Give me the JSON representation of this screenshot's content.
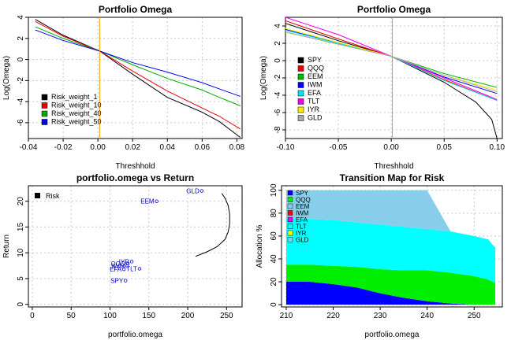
{
  "chart_data": [
    {
      "id": "p1",
      "type": "line",
      "title": "Portfolio Omega",
      "xlabel": "Threshhold",
      "ylabel": "Log(Omega)",
      "xlim": [
        -0.04,
        0.083
      ],
      "ylim": [
        -7.5,
        4
      ],
      "xticks": [
        "-0.04",
        "-0.02",
        "0.00",
        "0.02",
        "0.04",
        "0.06",
        "0.08"
      ],
      "xtick_values": [
        -0.04,
        -0.02,
        0,
        0.02,
        0.04,
        0.06,
        0.08
      ],
      "yticks": [
        "4",
        "2",
        "0",
        "-2",
        "-4",
        "-6"
      ],
      "ytick_values": [
        4,
        2,
        0,
        -2,
        -4,
        -6
      ],
      "grid": true,
      "vline": {
        "x": 0.001,
        "color": "#ff9900"
      },
      "legend_position": "bottom-left",
      "series": [
        {
          "name": "Risk_weight_1",
          "color": "#000000",
          "x": [
            -0.036,
            -0.02,
            0.001,
            0.02,
            0.04,
            0.06,
            0.07,
            0.082
          ],
          "y": [
            3.8,
            2.3,
            0.8,
            -1.4,
            -3.6,
            -5.0,
            -5.9,
            -7.4
          ]
        },
        {
          "name": "Risk_weight_10",
          "color": "#ee0000",
          "x": [
            -0.036,
            -0.02,
            0.001,
            0.02,
            0.04,
            0.06,
            0.07,
            0.082
          ],
          "y": [
            3.6,
            2.2,
            0.8,
            -1.1,
            -3.0,
            -4.6,
            -5.4,
            -6.6
          ]
        },
        {
          "name": "Risk_weight_40",
          "color": "#00aa00",
          "x": [
            -0.036,
            -0.02,
            0.001,
            0.02,
            0.04,
            0.06,
            0.07,
            0.082
          ],
          "y": [
            3.1,
            2.0,
            0.8,
            -0.5,
            -1.8,
            -2.9,
            -3.6,
            -4.4
          ]
        },
        {
          "name": "Risk_weight_50",
          "color": "#0000ff",
          "x": [
            -0.036,
            -0.02,
            0.001,
            0.02,
            0.04,
            0.06,
            0.07,
            0.082
          ],
          "y": [
            2.8,
            1.8,
            0.8,
            -0.3,
            -1.2,
            -2.2,
            -2.8,
            -3.5
          ]
        }
      ]
    },
    {
      "id": "p2",
      "type": "line",
      "title": "Portfolio Omega",
      "xlabel": "Threshhold",
      "ylabel": "Log(Omega)",
      "xlim": [
        -0.1,
        0.105
      ],
      "ylim": [
        -9,
        5
      ],
      "xticks": [
        "-0.10",
        "-0.05",
        "0.00",
        "0.05",
        "0.10"
      ],
      "xtick_values": [
        -0.1,
        -0.05,
        0,
        0.05,
        0.1
      ],
      "yticks": [
        "4",
        "2",
        "0",
        "-2",
        "-4",
        "-6",
        "-8"
      ],
      "ytick_values": [
        4,
        2,
        0,
        -2,
        -4,
        -6,
        -8
      ],
      "grid": true,
      "vline": {
        "x": 0.001,
        "color": "#ff9900"
      },
      "legend_position": "bottom-left",
      "series": [
        {
          "name": "SPY",
          "color": "#000000",
          "x": [
            -0.1,
            -0.05,
            0,
            0.05,
            0.08,
            0.095,
            0.1
          ],
          "y": [
            4.3,
            2.3,
            0.5,
            -2.5,
            -4.8,
            -6.8,
            -9.0
          ]
        },
        {
          "name": "QQQ",
          "color": "#ee0000",
          "x": [
            -0.1,
            -0.05,
            0,
            0.05,
            0.1
          ],
          "y": [
            4.6,
            2.5,
            0.5,
            -2.2,
            -4.6
          ]
        },
        {
          "name": "EEM",
          "color": "#00bb00",
          "x": [
            -0.1,
            -0.05,
            0,
            0.05,
            0.1
          ],
          "y": [
            3.3,
            1.9,
            0.5,
            -1.5,
            -3.1
          ]
        },
        {
          "name": "IWM",
          "color": "#0000ff",
          "x": [
            -0.1,
            -0.05,
            0,
            0.05,
            0.1
          ],
          "y": [
            3.6,
            2.0,
            0.5,
            -1.9,
            -3.8
          ]
        },
        {
          "name": "EFA",
          "color": "#00e5ee",
          "x": [
            -0.1,
            -0.05,
            0,
            0.05,
            0.1
          ],
          "y": [
            3.5,
            2.0,
            0.5,
            -2.3,
            -4.6
          ]
        },
        {
          "name": "TLT",
          "color": "#ee00ee",
          "x": [
            -0.1,
            -0.05,
            0,
            0.05,
            0.1
          ],
          "y": [
            5.0,
            3.0,
            0.5,
            -2.0,
            -4.5
          ]
        },
        {
          "name": "IYR",
          "color": "#ffee00",
          "x": [
            -0.1,
            -0.05,
            0,
            0.05,
            0.1
          ],
          "y": [
            3.7,
            2.1,
            0.5,
            -1.7,
            -3.4
          ]
        },
        {
          "name": "GLD",
          "color": "#aaaaaa",
          "x": [
            -0.1,
            -0.05,
            0,
            0.05,
            0.1
          ],
          "y": [
            3.3,
            1.9,
            0.5,
            -1.7,
            -3.6
          ]
        }
      ]
    },
    {
      "id": "p3",
      "type": "scatter",
      "title": "portfolio.omega vs Return",
      "xlabel": "portfolio.omega",
      "ylabel": "Return",
      "xlim": [
        -5,
        270
      ],
      "ylim": [
        -0.5,
        23
      ],
      "xticks": [
        "0",
        "50",
        "100",
        "150",
        "200",
        "250"
      ],
      "xtick_values": [
        0,
        50,
        100,
        150,
        200,
        250
      ],
      "yticks": [
        "0",
        "5",
        "10",
        "15",
        "20"
      ],
      "ytick_values": [
        0,
        5,
        10,
        15,
        20
      ],
      "grid": true,
      "legend_position": "top-left",
      "legend": [
        {
          "name": "Risk",
          "color": "#000000"
        }
      ],
      "frontier": {
        "name": "Risk",
        "color": "#000000",
        "x": [
          210,
          225,
          238,
          248,
          252,
          254,
          254,
          252,
          248,
          244
        ],
        "y": [
          9.3,
          10.2,
          11.2,
          12.6,
          14.0,
          15.6,
          17.5,
          19.2,
          20.6,
          21.5
        ]
      },
      "points": [
        {
          "label": "SPY",
          "x": 120,
          "y": 4.6
        },
        {
          "label": "QQQ",
          "x": 123,
          "y": 7.9
        },
        {
          "label": "EEM",
          "x": 160,
          "y": 20.0
        },
        {
          "label": "IWM",
          "x": 122,
          "y": 7.4
        },
        {
          "label": "EFA",
          "x": 118,
          "y": 6.8
        },
        {
          "label": "TLT",
          "x": 138,
          "y": 6.9
        },
        {
          "label": "IYR",
          "x": 128,
          "y": 8.3
        },
        {
          "label": "GLD",
          "x": 218,
          "y": 22.0
        }
      ]
    },
    {
      "id": "p4",
      "type": "area",
      "title": "Transition Map for Risk",
      "xlabel": "portfolio.omega",
      "ylabel": "Allocation %",
      "xlim": [
        209,
        256
      ],
      "ylim": [
        -2,
        104
      ],
      "xticks": [
        "210",
        "220",
        "230",
        "240",
        "250"
      ],
      "xtick_values": [
        210,
        220,
        230,
        240,
        250
      ],
      "yticks": [
        "0",
        "20",
        "40",
        "60",
        "80",
        "100"
      ],
      "ytick_values": [
        0,
        20,
        40,
        60,
        80,
        100
      ],
      "grid": true,
      "legend_position": "top-left",
      "note": "stacked cumulative allocation bands; each band: [cumulative upper bound] at each x",
      "x": [
        210,
        215,
        220,
        225,
        230,
        235,
        240,
        245,
        250,
        253,
        254,
        254.5
      ],
      "series": [
        {
          "name": "SPY",
          "color": "#0000ff",
          "upper": [
            20,
            20,
            18,
            15,
            10,
            6,
            3,
            1,
            0,
            0,
            0,
            0
          ]
        },
        {
          "name": "QQQ",
          "color": "#00ee00",
          "upper": [
            35,
            35,
            34,
            33,
            31,
            30,
            30,
            28,
            25,
            22,
            20,
            19
          ]
        },
        {
          "name": "EEM",
          "color": "#87ceeb",
          "upper": [
            35,
            35,
            34,
            33,
            31,
            30,
            30,
            28,
            25,
            22,
            20,
            19
          ]
        },
        {
          "name": "IWM",
          "color": "#ff0000",
          "upper": [
            35,
            35,
            34,
            33,
            31,
            30,
            30,
            28,
            25,
            22,
            20,
            19
          ]
        },
        {
          "name": "EFA",
          "color": "#ee00ee",
          "upper": [
            35,
            35,
            34,
            33,
            31,
            30,
            30,
            28,
            25,
            22,
            20,
            19
          ]
        },
        {
          "name": "TLT",
          "color": "#00ffff",
          "upper": [
            76,
            75,
            74,
            72,
            70,
            68,
            66,
            64,
            60,
            57,
            52,
            50
          ]
        },
        {
          "name": "IYR",
          "color": "#ffff00",
          "upper": [
            76,
            75,
            74,
            72,
            70,
            68,
            66,
            64,
            60,
            57,
            52,
            50
          ]
        },
        {
          "name": "GLD",
          "color": "#87ceeb",
          "upper": [
            100,
            100,
            100,
            100,
            100,
            100,
            100,
            64,
            60,
            57,
            52,
            50
          ]
        }
      ]
    }
  ]
}
